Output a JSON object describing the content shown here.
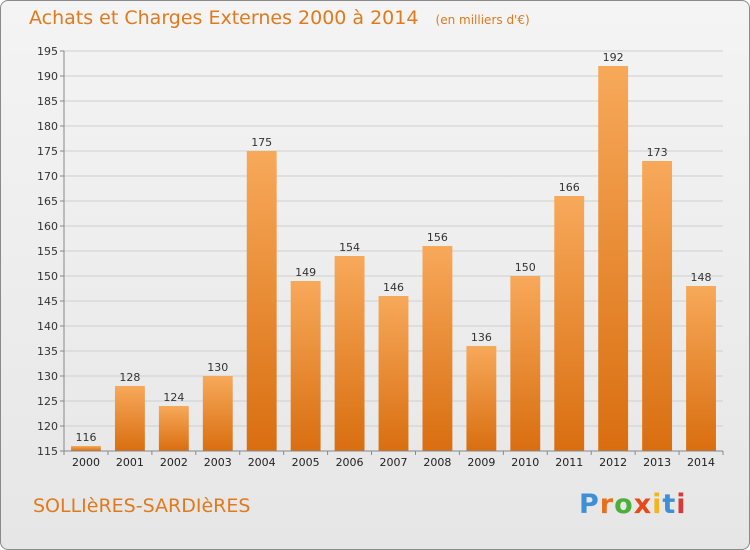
{
  "title": "Achats et Charges Externes 2000 à 2014",
  "subtitle": "(en milliers d'€)",
  "commune": "SOLLIèRES-SARDIèRES",
  "logo": {
    "letters": [
      "P",
      "r",
      "o",
      "x",
      "i",
      "t",
      "i"
    ]
  },
  "colors": {
    "accent": "#e07a1c",
    "bar_top": "#f7a95a",
    "bar_bottom": "#d96e10"
  },
  "chart_data": {
    "type": "bar",
    "title": "Achats et Charges Externes 2000 à 2014",
    "subtitle": "(en milliers d'€)",
    "categories": [
      "2000",
      "2001",
      "2002",
      "2003",
      "2004",
      "2005",
      "2006",
      "2007",
      "2008",
      "2009",
      "2010",
      "2011",
      "2012",
      "2013",
      "2014"
    ],
    "values": [
      116,
      128,
      124,
      130,
      175,
      149,
      154,
      146,
      156,
      136,
      150,
      166,
      192,
      173,
      148
    ],
    "ylim": [
      115,
      195
    ],
    "yticks": [
      115,
      120,
      125,
      130,
      135,
      140,
      145,
      150,
      155,
      160,
      165,
      170,
      175,
      180,
      185,
      190,
      195
    ],
    "grid": true,
    "data_labels": true
  }
}
